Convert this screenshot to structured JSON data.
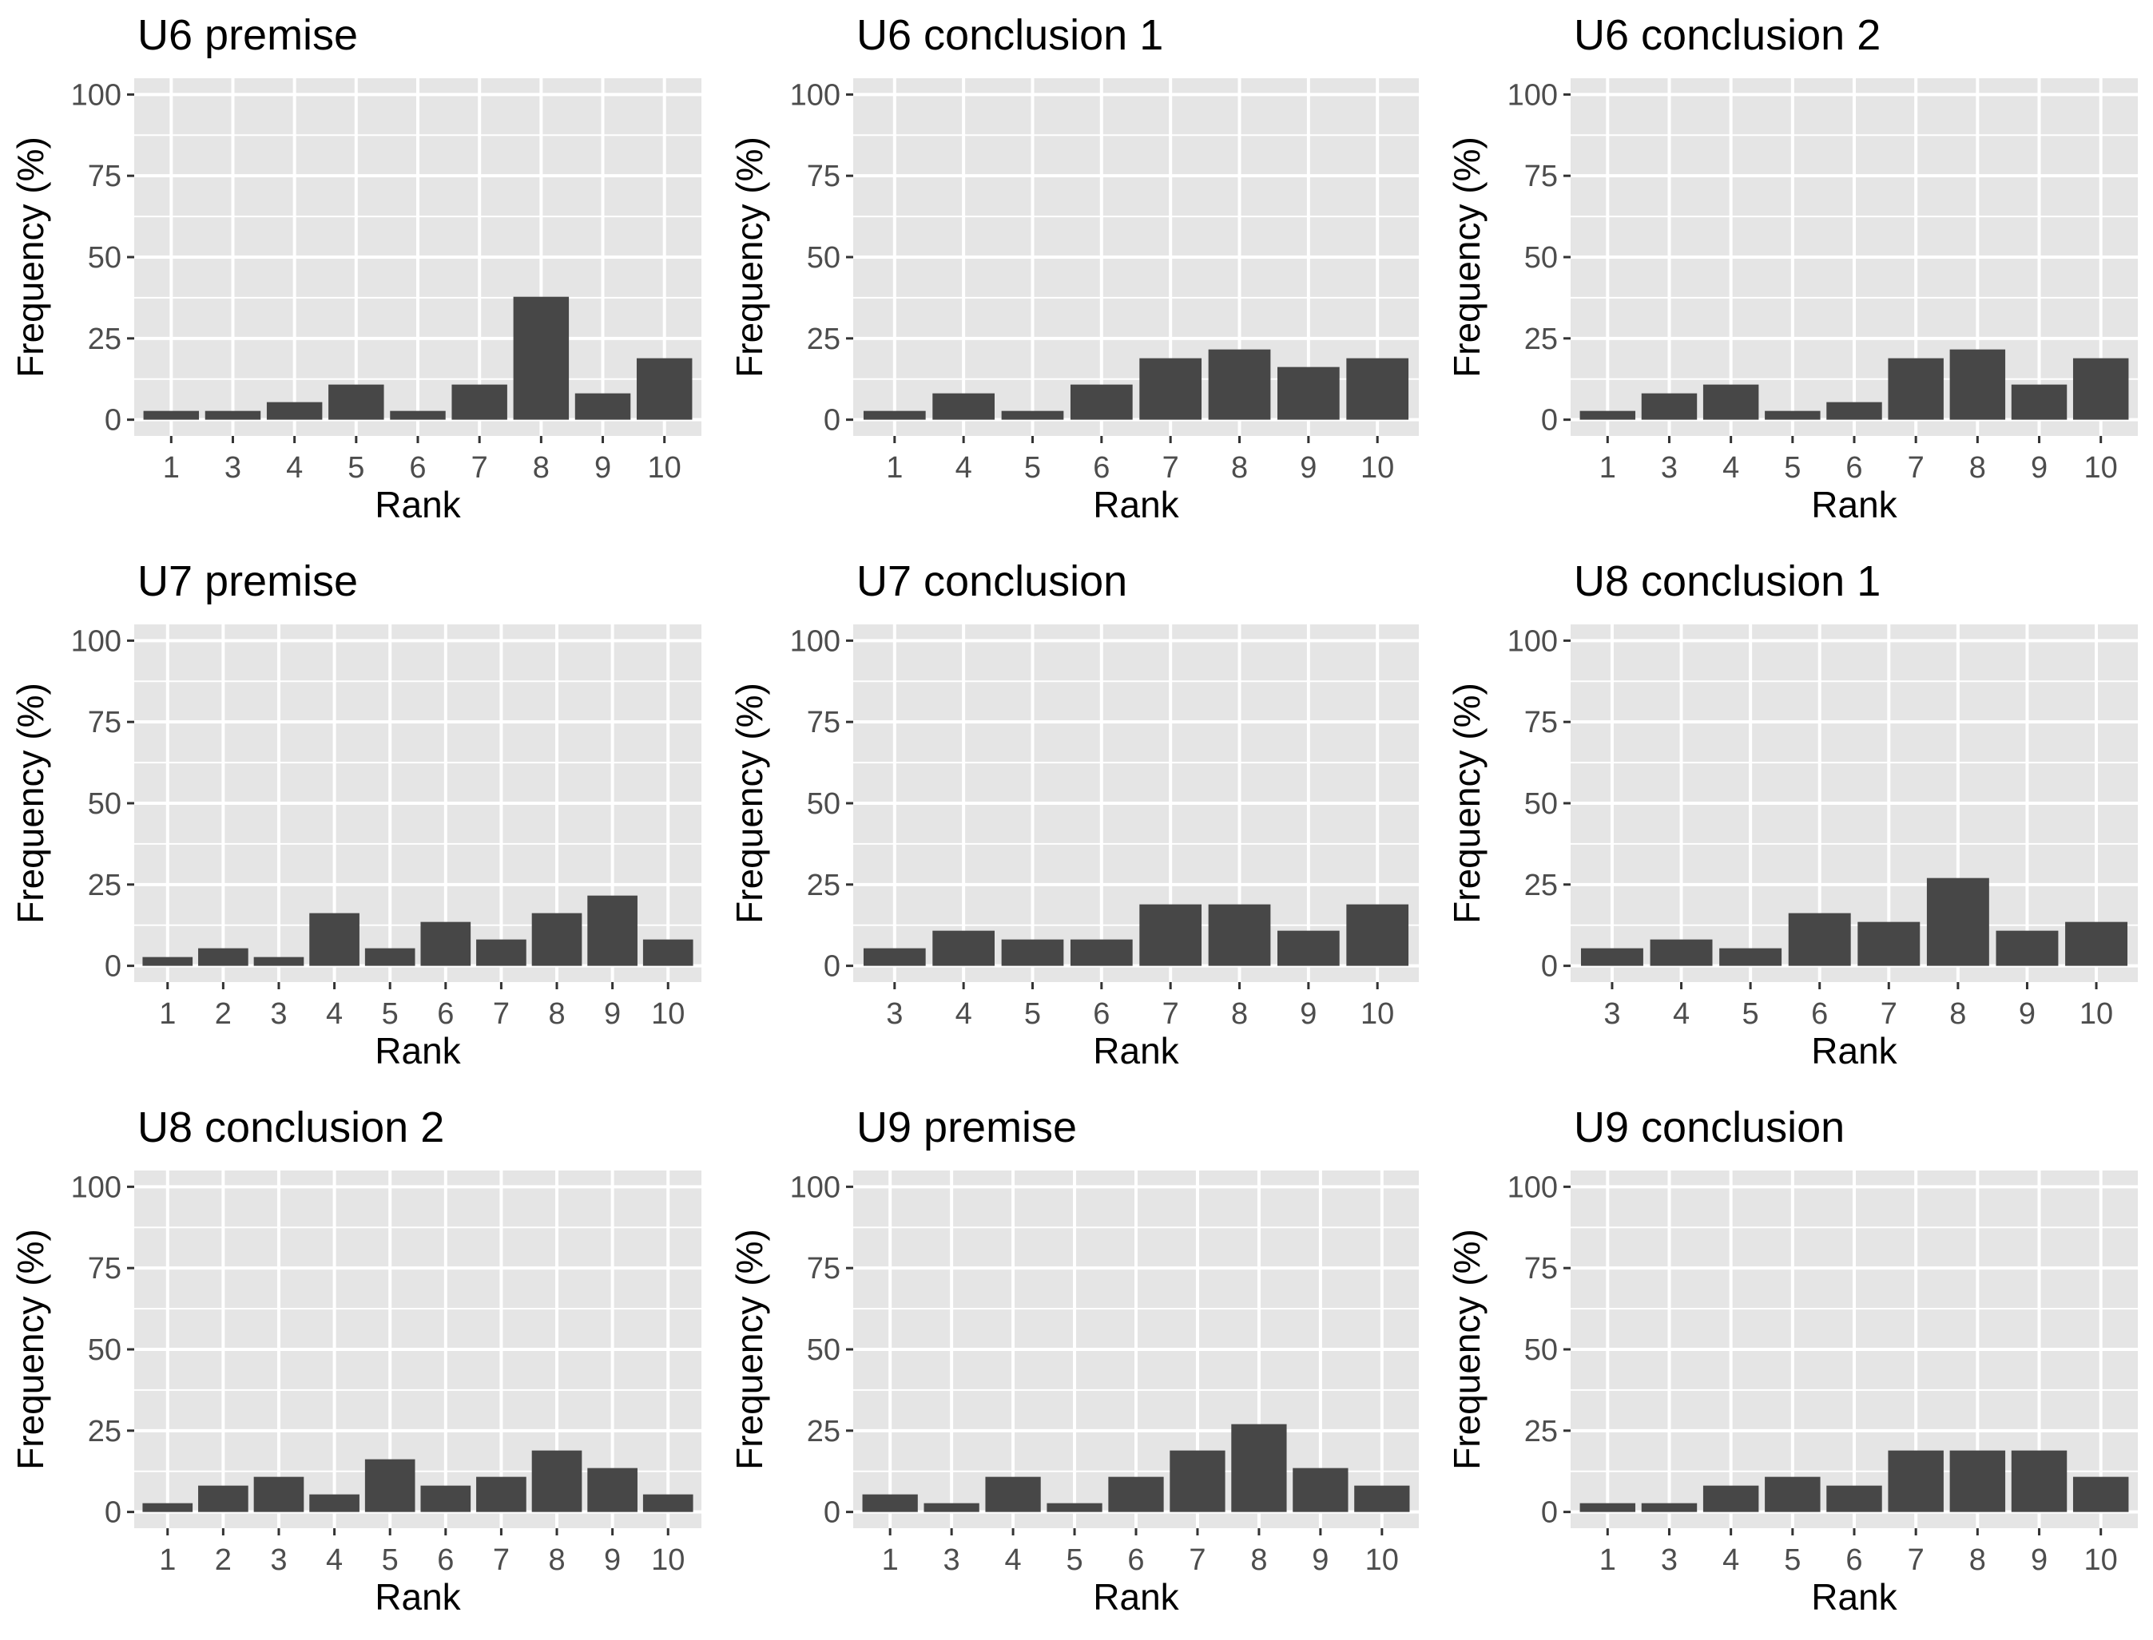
{
  "colors": {
    "panel_background": "#e5e5e5",
    "grid": "#ffffff",
    "bar": "#474747",
    "tick_text": "#4d4d4d",
    "title_text": "#000000"
  },
  "chart_data": [
    {
      "type": "bar",
      "title": "U6 premise",
      "xlabel": "Rank",
      "ylabel": "Frequency (%)",
      "ylim": [
        0,
        100
      ],
      "yticks": [
        "0",
        "25",
        "50",
        "75",
        "100"
      ],
      "grid": true,
      "categories": [
        "1",
        "3",
        "4",
        "5",
        "6",
        "7",
        "8",
        "9",
        "10"
      ],
      "values": [
        2.7,
        2.7,
        5.4,
        10.8,
        2.7,
        10.8,
        37.8,
        8.1,
        18.9
      ]
    },
    {
      "type": "bar",
      "title": "U6 conclusion 1",
      "xlabel": "Rank",
      "ylabel": "Frequency (%)",
      "ylim": [
        0,
        100
      ],
      "yticks": [
        "0",
        "25",
        "50",
        "75",
        "100"
      ],
      "grid": true,
      "categories": [
        "1",
        "4",
        "5",
        "6",
        "7",
        "8",
        "9",
        "10"
      ],
      "values": [
        2.7,
        8.1,
        2.7,
        10.8,
        18.9,
        21.6,
        16.2,
        18.9
      ]
    },
    {
      "type": "bar",
      "title": "U6 conclusion 2",
      "xlabel": "Rank",
      "ylabel": "Frequency (%)",
      "ylim": [
        0,
        100
      ],
      "yticks": [
        "0",
        "25",
        "50",
        "75",
        "100"
      ],
      "grid": true,
      "categories": [
        "1",
        "3",
        "4",
        "5",
        "6",
        "7",
        "8",
        "9",
        "10"
      ],
      "values": [
        2.7,
        8.1,
        10.8,
        2.7,
        5.4,
        18.9,
        21.6,
        10.8,
        18.9
      ]
    },
    {
      "type": "bar",
      "title": "U7 premise",
      "xlabel": "Rank",
      "ylabel": "Frequency (%)",
      "ylim": [
        0,
        100
      ],
      "yticks": [
        "0",
        "25",
        "50",
        "75",
        "100"
      ],
      "grid": true,
      "categories": [
        "1",
        "2",
        "3",
        "4",
        "5",
        "6",
        "7",
        "8",
        "9",
        "10"
      ],
      "values": [
        2.7,
        5.4,
        2.7,
        16.2,
        5.4,
        13.5,
        8.1,
        16.2,
        21.6,
        8.1
      ]
    },
    {
      "type": "bar",
      "title": "U7 conclusion",
      "xlabel": "Rank",
      "ylabel": "Frequency (%)",
      "ylim": [
        0,
        100
      ],
      "yticks": [
        "0",
        "25",
        "50",
        "75",
        "100"
      ],
      "grid": true,
      "categories": [
        "3",
        "4",
        "5",
        "6",
        "7",
        "8",
        "9",
        "10"
      ],
      "values": [
        5.4,
        10.8,
        8.1,
        8.1,
        18.9,
        18.9,
        10.8,
        18.9
      ]
    },
    {
      "type": "bar",
      "title": "U8 conclusion 1",
      "xlabel": "Rank",
      "ylabel": "Frequency (%)",
      "ylim": [
        0,
        100
      ],
      "yticks": [
        "0",
        "25",
        "50",
        "75",
        "100"
      ],
      "grid": true,
      "categories": [
        "3",
        "4",
        "5",
        "6",
        "7",
        "8",
        "9",
        "10"
      ],
      "values": [
        5.4,
        8.1,
        5.4,
        16.2,
        13.5,
        27.0,
        10.8,
        13.5
      ]
    },
    {
      "type": "bar",
      "title": "U8 conclusion 2",
      "xlabel": "Rank",
      "ylabel": "Frequency (%)",
      "ylim": [
        0,
        100
      ],
      "yticks": [
        "0",
        "25",
        "50",
        "75",
        "100"
      ],
      "grid": true,
      "categories": [
        "1",
        "2",
        "3",
        "4",
        "5",
        "6",
        "7",
        "8",
        "9",
        "10"
      ],
      "values": [
        2.7,
        8.1,
        10.8,
        5.4,
        16.2,
        8.1,
        10.8,
        18.9,
        13.5,
        5.4
      ]
    },
    {
      "type": "bar",
      "title": "U9 premise",
      "xlabel": "Rank",
      "ylabel": "Frequency (%)",
      "ylim": [
        0,
        100
      ],
      "yticks": [
        "0",
        "25",
        "50",
        "75",
        "100"
      ],
      "grid": true,
      "categories": [
        "1",
        "3",
        "4",
        "5",
        "6",
        "7",
        "8",
        "9",
        "10"
      ],
      "values": [
        5.4,
        2.7,
        10.8,
        2.7,
        10.8,
        18.9,
        27.0,
        13.5,
        8.1
      ]
    },
    {
      "type": "bar",
      "title": "U9 conclusion",
      "xlabel": "Rank",
      "ylabel": "Frequency (%)",
      "ylim": [
        0,
        100
      ],
      "yticks": [
        "0",
        "25",
        "50",
        "75",
        "100"
      ],
      "grid": true,
      "categories": [
        "1",
        "3",
        "4",
        "5",
        "6",
        "7",
        "8",
        "9",
        "10"
      ],
      "values": [
        2.7,
        2.7,
        8.1,
        10.8,
        8.1,
        18.9,
        18.9,
        18.9,
        10.8
      ]
    }
  ]
}
